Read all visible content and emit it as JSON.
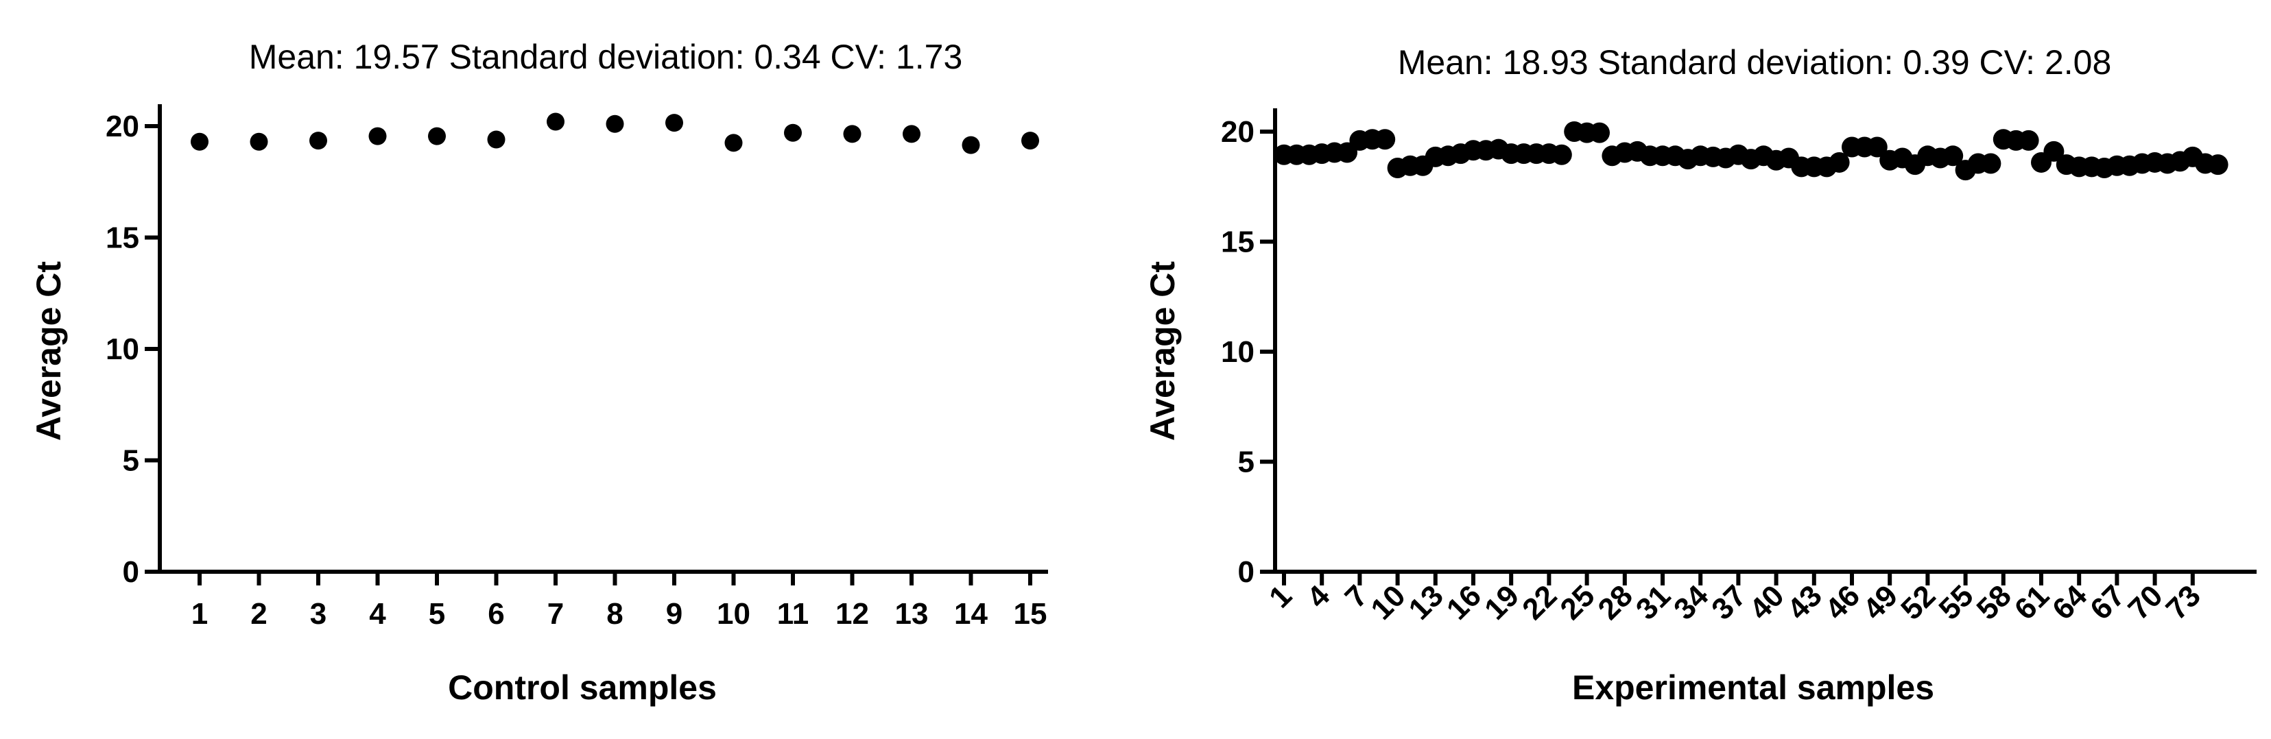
{
  "chart_data": [
    {
      "type": "scatter",
      "stats_text": "Mean: 19.57    Standard deviation: 0.34    CV: 1.73",
      "xlabel": "Control samples",
      "ylabel": "Average Ct",
      "ylim": [
        0,
        21
      ],
      "yticks": [
        0,
        5,
        10,
        15,
        20
      ],
      "x": [
        1,
        2,
        3,
        4,
        5,
        6,
        7,
        8,
        9,
        10,
        11,
        12,
        13,
        14,
        15
      ],
      "xtick_labels": [
        "1",
        "2",
        "3",
        "4",
        "5",
        "6",
        "7",
        "8",
        "9",
        "10",
        "11",
        "12",
        "13",
        "14",
        "15"
      ],
      "y": [
        19.3,
        19.3,
        19.35,
        19.55,
        19.55,
        19.4,
        20.2,
        20.1,
        20.15,
        19.25,
        19.7,
        19.65,
        19.65,
        19.15,
        19.35
      ],
      "grid": false
    },
    {
      "type": "scatter",
      "stats_text": "Mean: 18.93    Standard deviation: 0.39    CV: 2.08",
      "xlabel": "Experimental samples",
      "ylabel": "Average Ct",
      "ylim": [
        0,
        21
      ],
      "yticks": [
        0,
        5,
        10,
        15,
        20
      ],
      "xtick_labels": [
        "1",
        "4",
        "7",
        "10",
        "13",
        "16",
        "19",
        "22",
        "25",
        "28",
        "31",
        "34",
        "37",
        "40",
        "43",
        "46",
        "49",
        "52",
        "55",
        "58",
        "61",
        "64",
        "67",
        "70",
        "73"
      ],
      "xtick_positions": [
        1,
        4,
        7,
        10,
        13,
        16,
        19,
        22,
        25,
        28,
        31,
        34,
        37,
        40,
        43,
        46,
        49,
        52,
        55,
        58,
        61,
        64,
        67,
        70,
        73
      ],
      "x": [
        1,
        2,
        3,
        4,
        5,
        6,
        7,
        8,
        9,
        10,
        11,
        12,
        13,
        14,
        15,
        16,
        17,
        18,
        19,
        20,
        21,
        22,
        23,
        24,
        25,
        26,
        27,
        28,
        29,
        30,
        31,
        32,
        33,
        34,
        35,
        36,
        37,
        38,
        39,
        40,
        41,
        42,
        43,
        44,
        45,
        46,
        47,
        48,
        49,
        50,
        51,
        52,
        53,
        54,
        55,
        56,
        57,
        58,
        59,
        60,
        61,
        62,
        63,
        64,
        65,
        66,
        67,
        68,
        69,
        70,
        71,
        72,
        73,
        74,
        75
      ],
      "y": [
        18.95,
        18.95,
        18.95,
        19.0,
        19.05,
        19.05,
        19.6,
        19.65,
        19.65,
        18.35,
        18.45,
        18.45,
        18.85,
        18.9,
        19.0,
        19.15,
        19.15,
        19.2,
        19.0,
        19.0,
        19.0,
        19.0,
        18.95,
        20.0,
        19.95,
        19.95,
        18.9,
        19.05,
        19.1,
        18.9,
        18.9,
        18.9,
        18.75,
        18.9,
        18.85,
        18.8,
        18.95,
        18.75,
        18.9,
        18.7,
        18.8,
        18.4,
        18.4,
        18.4,
        18.6,
        19.3,
        19.3,
        19.3,
        18.7,
        18.8,
        18.5,
        18.9,
        18.8,
        18.9,
        18.25,
        18.55,
        18.55,
        19.65,
        19.6,
        19.6,
        18.6,
        19.1,
        18.5,
        18.4,
        18.4,
        18.35,
        18.45,
        18.45,
        18.55,
        18.6,
        18.55,
        18.65,
        18.85,
        18.55,
        18.5
      ],
      "grid": false
    }
  ]
}
